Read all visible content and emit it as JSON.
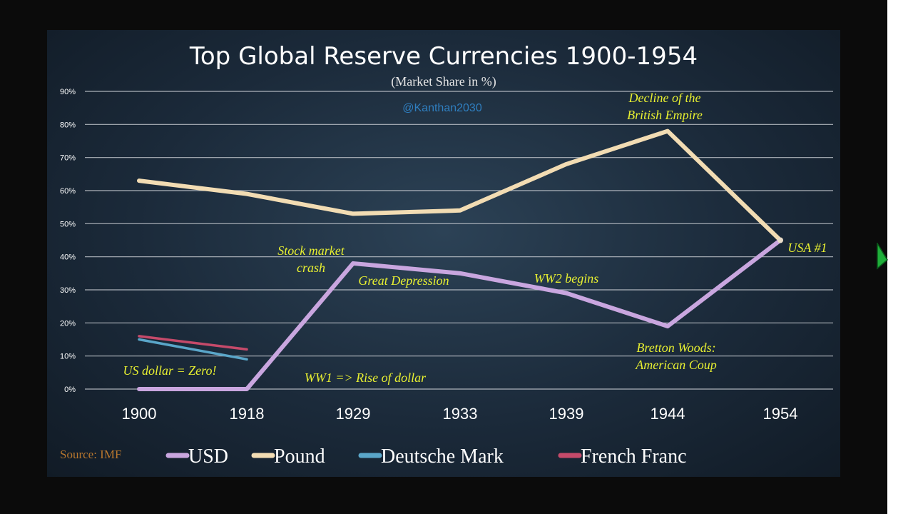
{
  "chart_data": {
    "type": "line",
    "title": "Top Global Reserve Currencies 1900-1954",
    "subtitle": "(Market Share in %)",
    "watermark": "@Kanthan2030",
    "source": "Source: IMF",
    "categories": [
      "1900",
      "1918",
      "1929",
      "1933",
      "1939",
      "1944",
      "1954"
    ],
    "ylim": [
      0,
      90
    ],
    "yticks": [
      "0%",
      "10%",
      "20%",
      "30%",
      "40%",
      "50%",
      "60%",
      "70%",
      "80%",
      "90%"
    ],
    "grid": true,
    "legend_position": "bottom",
    "series": [
      {
        "name": "USD",
        "color": "#c9a6df",
        "values": [
          0,
          0,
          38,
          35,
          29,
          19,
          45
        ]
      },
      {
        "name": "Pound",
        "color": "#f2dcb3",
        "values": [
          63,
          59,
          53,
          54,
          68,
          78,
          45
        ]
      },
      {
        "name": "Deutsche Mark",
        "color": "#5aa6c9",
        "values": [
          15,
          9,
          null,
          null,
          null,
          null,
          null
        ]
      },
      {
        "name": "French Franc",
        "color": "#c54a6a",
        "values": [
          16,
          12,
          null,
          null,
          null,
          null,
          null
        ]
      }
    ],
    "annotations": [
      {
        "lines": [
          "Decline of the",
          "British Empire"
        ],
        "x": 5,
        "y": 78,
        "pos": "above"
      },
      {
        "lines": [
          "Stock market",
          "crash"
        ],
        "x": 2,
        "y": 38,
        "pos": "above-left"
      },
      {
        "lines": [
          "Great Depression"
        ],
        "x": 2.65,
        "y": 35,
        "pos": "near"
      },
      {
        "lines": [
          "WW2 begins"
        ],
        "x": 4,
        "y": 33,
        "pos": "near"
      },
      {
        "lines": [
          "USA #1"
        ],
        "x": 6,
        "y": 45,
        "pos": "right"
      },
      {
        "lines": [
          "Bretton Woods:",
          "American Coup"
        ],
        "x": 5,
        "y": 19,
        "pos": "below"
      },
      {
        "lines": [
          "US dollar = Zero!"
        ],
        "x": 0.3,
        "y": 5,
        "pos": "near"
      },
      {
        "lines": [
          "WW1 => Rise of dollar"
        ],
        "x": 2.2,
        "y": 1,
        "pos": "below"
      }
    ]
  }
}
